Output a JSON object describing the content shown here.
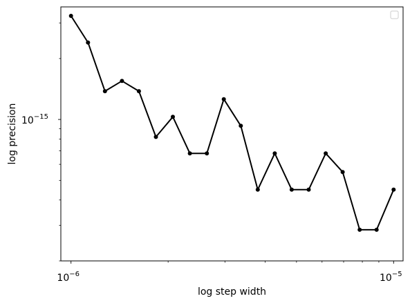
{
  "chart_data": {
    "type": "line",
    "title": "",
    "xlabel": "log step width",
    "ylabel": "log precision",
    "xscale": "log",
    "yscale": "log",
    "xlim": [
      9.3e-07,
      1.07e-05
    ],
    "ylim": [
      2e-16,
      3.6e-15
    ],
    "x_major_ticks": [
      {
        "value": 1e-06,
        "base": "10",
        "exp": "−6"
      },
      {
        "value": 1e-05,
        "base": "10",
        "exp": "−5"
      }
    ],
    "y_major_ticks": [
      {
        "value": 1e-15,
        "base": "10",
        "exp": "−15"
      }
    ],
    "grid": false,
    "legend": {
      "placement": "top-right",
      "entries": []
    },
    "line_color": "#000000",
    "series": [
      {
        "x": [
          1e-06,
          1.1288e-06,
          1.2743e-06,
          1.4384e-06,
          1.6238e-06,
          1.833e-06,
          2.0691e-06,
          2.3357e-06,
          2.6367e-06,
          2.9764e-06,
          3.3598e-06,
          3.7927e-06,
          4.2813e-06,
          4.8329e-06,
          5.4556e-06,
          6.1585e-06,
          6.9519e-06,
          7.8476e-06,
          8.8587e-06,
          1e-05
        ],
        "y": [
          3.25e-15,
          2.4e-15,
          1.38e-15,
          1.55e-15,
          1.38e-15,
          8.2e-16,
          1.03e-15,
          6.8e-16,
          6.8e-16,
          1.26e-15,
          9.3e-16,
          4.5e-16,
          6.8e-16,
          4.5e-16,
          4.5e-16,
          6.8e-16,
          5.5e-16,
          2.85e-16,
          2.85e-16,
          4.5e-16
        ]
      }
    ]
  }
}
